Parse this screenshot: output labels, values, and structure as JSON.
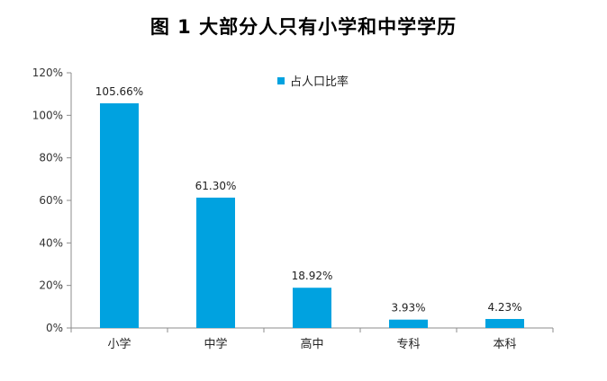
{
  "chart_data": {
    "type": "bar",
    "title": "图 1  大部分人只有小学和中学学历",
    "categories": [
      "小学",
      "中学",
      "高中",
      "专科",
      "本科"
    ],
    "series": [
      {
        "name": "占人口比率",
        "values": [
          105.66,
          61.3,
          18.92,
          3.93,
          4.23
        ],
        "labels": [
          "105.66%",
          "61.30%",
          "18.92%",
          "3.93%",
          "4.23%"
        ],
        "color": "#00A2E0"
      }
    ],
    "ylim": [
      0,
      120
    ],
    "yticks": [
      "0%",
      "20%",
      "40%",
      "60%",
      "80%",
      "100%",
      "120%"
    ],
    "grid": false,
    "legend_position": "top"
  }
}
